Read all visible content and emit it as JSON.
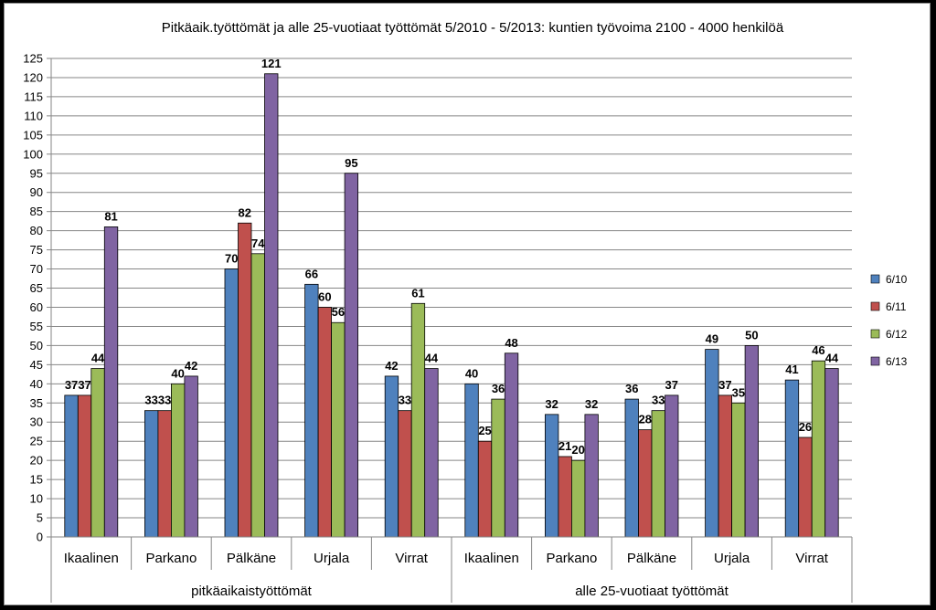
{
  "chart_data": {
    "type": "bar",
    "title": "Pitkäaik.työttömät ja alle 25-vuotiaat työttömät 5/2010 - 5/2013: kuntien työvoima 2100 - 4000 henkilöä",
    "groups": [
      {
        "label": "pitkäaikaistyöttömät",
        "categories": [
          "Ikaalinen",
          "Parkano",
          "Pälkäne",
          "Urjala",
          "Virrat"
        ]
      },
      {
        "label": "alle 25-vuotiaat työttömät",
        "categories": [
          "Ikaalinen",
          "Parkano",
          "Pälkäne",
          "Urjala",
          "Virrat"
        ]
      }
    ],
    "series": [
      {
        "name": "6/10",
        "color": "#4f81bd",
        "values": [
          37,
          33,
          70,
          66,
          42,
          40,
          32,
          36,
          49,
          41
        ]
      },
      {
        "name": "6/11",
        "color": "#c0504d",
        "values": [
          37,
          33,
          82,
          60,
          33,
          25,
          21,
          28,
          37,
          26
        ]
      },
      {
        "name": "6/12",
        "color": "#9bbb59",
        "values": [
          44,
          40,
          74,
          56,
          61,
          36,
          20,
          33,
          35,
          46
        ]
      },
      {
        "name": "6/13",
        "color": "#8064a2",
        "values": [
          81,
          42,
          121,
          95,
          44,
          48,
          32,
          37,
          50,
          44
        ]
      }
    ],
    "ylim": [
      0,
      125
    ],
    "ytick_step": 5,
    "grid": true,
    "legend_position": "right"
  }
}
